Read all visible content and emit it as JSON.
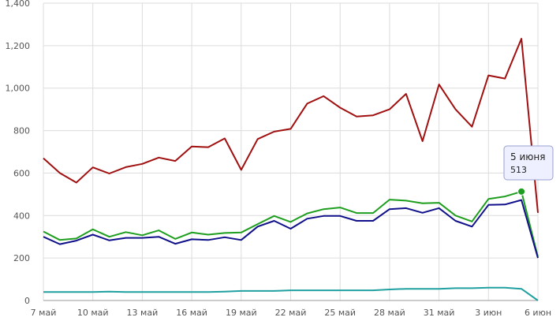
{
  "chart_data": {
    "type": "line",
    "x": [
      "7 май",
      "8 май",
      "9 май",
      "10 май",
      "11 май",
      "12 май",
      "13 май",
      "14 май",
      "15 май",
      "16 май",
      "17 май",
      "18 май",
      "19 май",
      "20 май",
      "21 май",
      "22 май",
      "23 май",
      "24 май",
      "25 май",
      "26 май",
      "27 май",
      "28 май",
      "29 май",
      "30 май",
      "31 май",
      "1 июн",
      "2 июн",
      "3 июн",
      "4 июн",
      "5 июн",
      "6 июн"
    ],
    "x_tick_labels": [
      "7 май",
      "10 май",
      "13 май",
      "16 май",
      "19 май",
      "22 май",
      "25 май",
      "28 май",
      "31 май",
      "3 июн",
      "6 июн"
    ],
    "y_tick_labels": [
      "0",
      "200",
      "400",
      "600",
      "800",
      "1,000",
      "1,200",
      "1,400"
    ],
    "ylim": [
      0,
      1400
    ],
    "grid": true,
    "series": [
      {
        "color": "#a01010",
        "values": [
          670,
          600,
          555,
          627,
          598,
          628,
          643,
          673,
          657,
          725,
          722,
          763,
          615,
          760,
          795,
          808,
          927,
          962,
          908,
          866,
          872,
          900,
          973,
          750,
          1017,
          900,
          818,
          1060,
          1045,
          1233,
          413
        ]
      },
      {
        "color": "#1e9e1e",
        "values": [
          325,
          285,
          292,
          335,
          300,
          322,
          307,
          330,
          290,
          320,
          310,
          318,
          320,
          360,
          398,
          370,
          410,
          430,
          438,
          412,
          412,
          475,
          470,
          458,
          460,
          400,
          372,
          478,
          490,
          513,
          205
        ]
      },
      {
        "color": "#10108a",
        "values": [
          300,
          265,
          282,
          310,
          283,
          295,
          295,
          300,
          267,
          288,
          285,
          298,
          285,
          348,
          375,
          338,
          385,
          398,
          398,
          375,
          375,
          430,
          435,
          413,
          435,
          375,
          348,
          450,
          452,
          473,
          200
        ]
      },
      {
        "color": "#20a0a0",
        "values": [
          40,
          40,
          40,
          40,
          42,
          40,
          40,
          40,
          40,
          40,
          40,
          42,
          45,
          45,
          45,
          48,
          48,
          48,
          48,
          48,
          48,
          52,
          55,
          55,
          55,
          58,
          58,
          60,
          60,
          55,
          0
        ]
      }
    ],
    "tooltip": {
      "label": "5 июня",
      "value": "513",
      "point_index": 29
    }
  }
}
